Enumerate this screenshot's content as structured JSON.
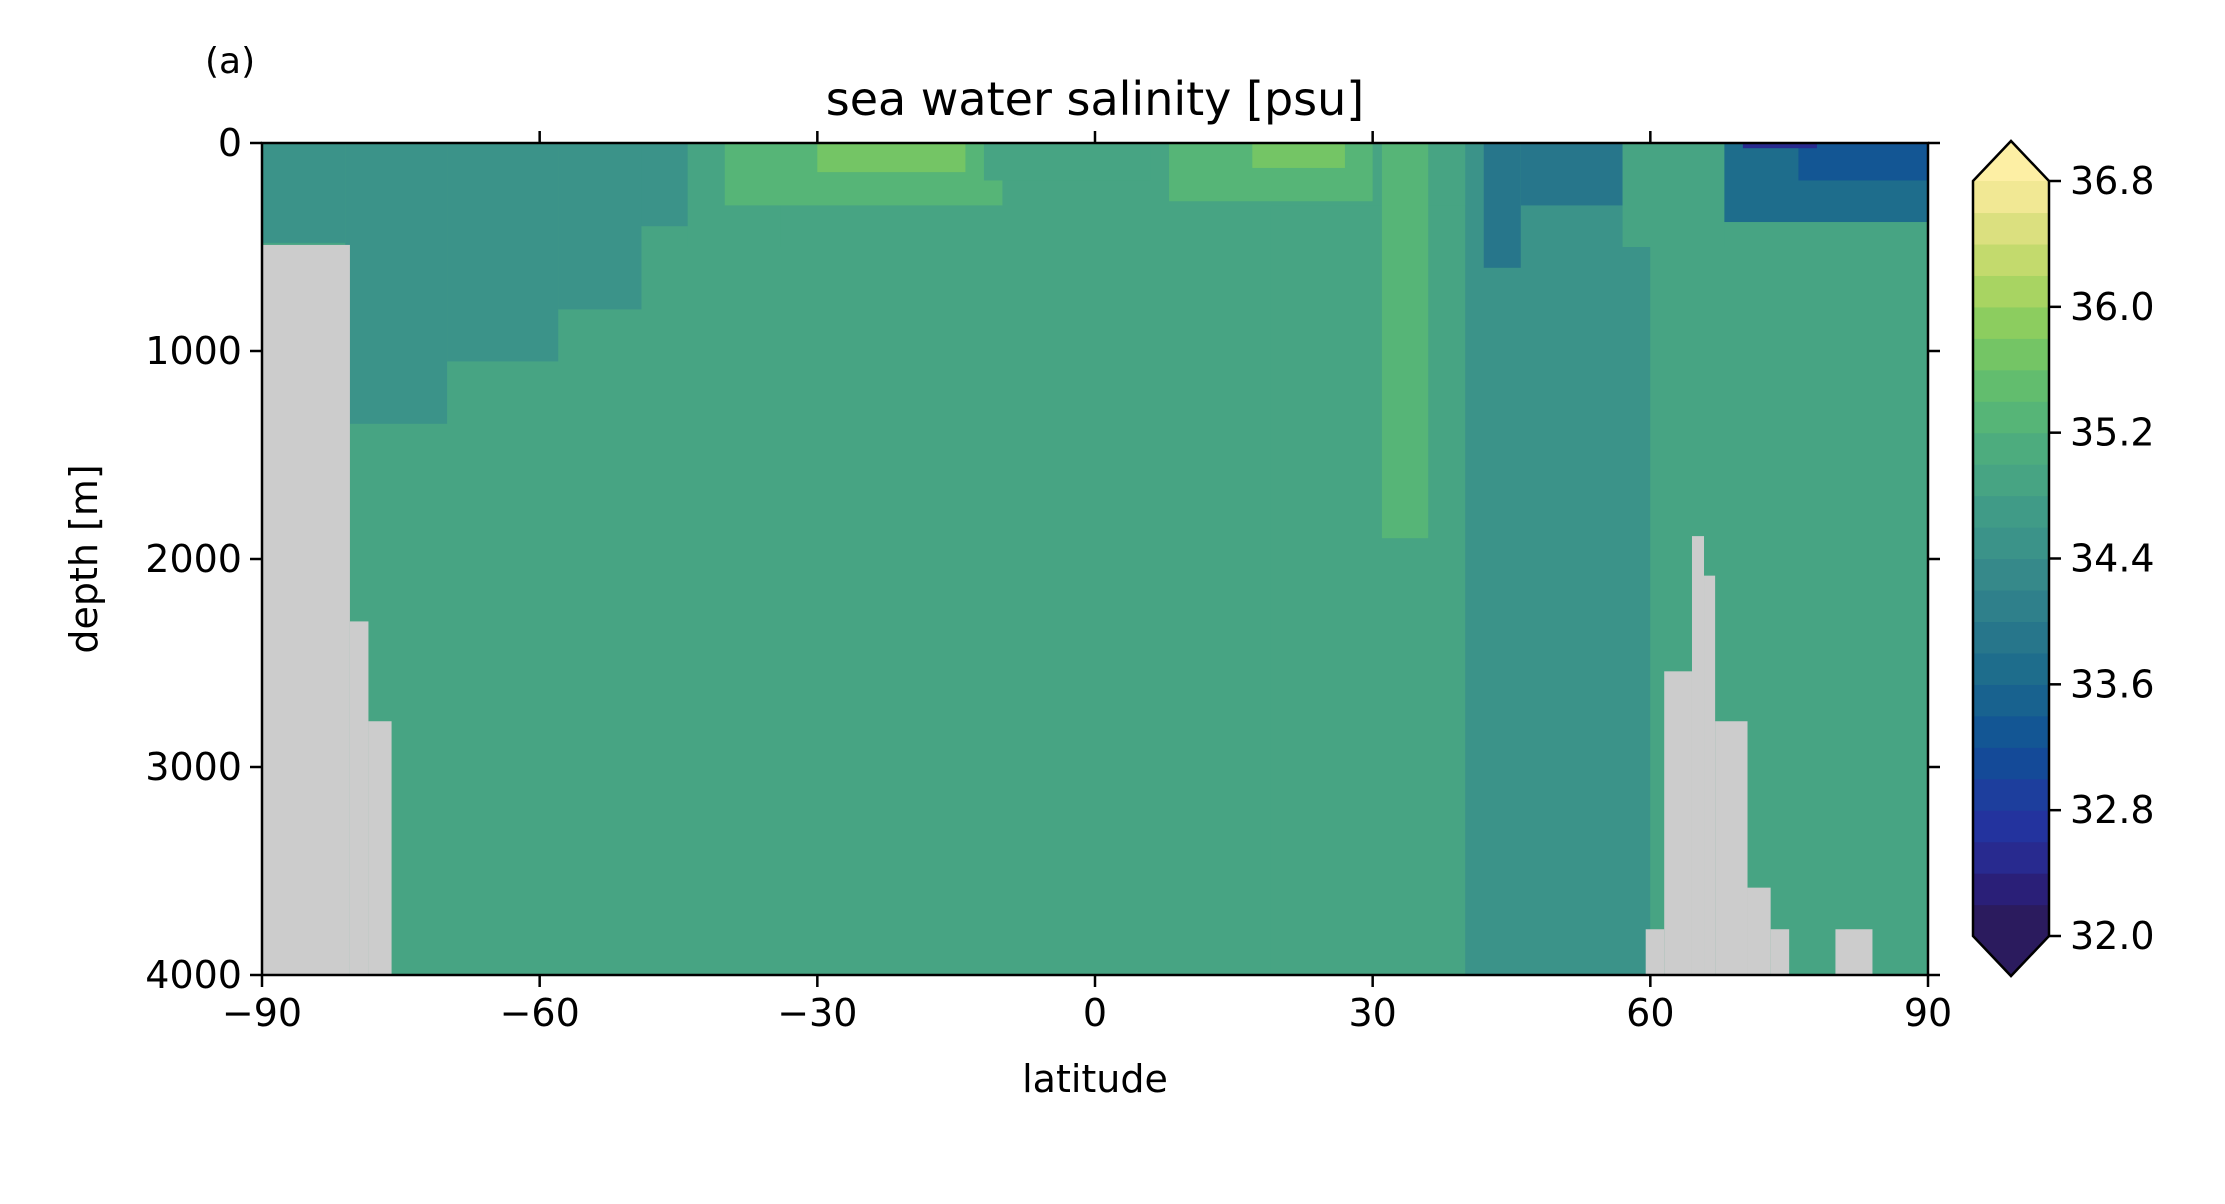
{
  "panel_label": "(a)",
  "chart_data": {
    "type": "heatmap",
    "title": "sea water salinity [psu]",
    "xlabel": "latitude",
    "ylabel": "depth [m]",
    "xlim": [
      -90,
      90
    ],
    "ylim": [
      4000,
      0
    ],
    "y_inverted": true,
    "x_ticks": [
      {
        "value": -90,
        "label": "−90"
      },
      {
        "value": -60,
        "label": "−60"
      },
      {
        "value": -30,
        "label": "−30"
      },
      {
        "value": 0,
        "label": "0"
      },
      {
        "value": 30,
        "label": "30"
      },
      {
        "value": 60,
        "label": "60"
      },
      {
        "value": 90,
        "label": "90"
      }
    ],
    "y_ticks": [
      {
        "value": 0,
        "label": "0"
      },
      {
        "value": 1000,
        "label": "1000"
      },
      {
        "value": 2000,
        "label": "2000"
      },
      {
        "value": 3000,
        "label": "3000"
      },
      {
        "value": 4000,
        "label": "4000"
      }
    ],
    "colorbar": {
      "vmin": 32.0,
      "vmax": 36.8,
      "extend": "both",
      "tick_labels": [
        {
          "value": 32.0,
          "label": "32.0"
        },
        {
          "value": 32.8,
          "label": "32.8"
        },
        {
          "value": 33.6,
          "label": "33.6"
        },
        {
          "value": 34.4,
          "label": "34.4"
        },
        {
          "value": 35.2,
          "label": "35.2"
        },
        {
          "value": 36.0,
          "label": "36.0"
        },
        {
          "value": 36.8,
          "label": "36.8"
        }
      ],
      "levels": [
        {
          "value": 32.0,
          "color": "#2b1b5e"
        },
        {
          "value": 32.2,
          "color": "#2a1f78"
        },
        {
          "value": 32.4,
          "color": "#282a8f"
        },
        {
          "value": 32.6,
          "color": "#23339e"
        },
        {
          "value": 32.8,
          "color": "#1d3e9d"
        },
        {
          "value": 33.0,
          "color": "#144a98"
        },
        {
          "value": 33.2,
          "color": "#135694"
        },
        {
          "value": 33.4,
          "color": "#18628f"
        },
        {
          "value": 33.6,
          "color": "#1e6d8c"
        },
        {
          "value": 33.8,
          "color": "#27768b"
        },
        {
          "value": 34.0,
          "color": "#2f808b"
        },
        {
          "value": 34.2,
          "color": "#36898a"
        },
        {
          "value": 34.4,
          "color": "#3b9389"
        },
        {
          "value": 34.6,
          "color": "#409b87"
        },
        {
          "value": 34.8,
          "color": "#47a483"
        },
        {
          "value": 35.0,
          "color": "#4dac7e"
        },
        {
          "value": 35.2,
          "color": "#56b577"
        },
        {
          "value": 35.4,
          "color": "#62bd6e"
        },
        {
          "value": 35.6,
          "color": "#74c565"
        },
        {
          "value": 35.8,
          "color": "#8ccd5f"
        },
        {
          "value": 36.0,
          "color": "#a8d462"
        },
        {
          "value": 36.2,
          "color": "#c3da6d"
        },
        {
          "value": 36.4,
          "color": "#dbe07f"
        },
        {
          "value": 36.6,
          "color": "#f1e894"
        },
        {
          "value": 36.8,
          "color": "#fdefa4"
        }
      ]
    },
    "land_color": "#cccccc",
    "background_field": 34.7,
    "field_regions": [
      {
        "lat": [
          -90,
          -81
        ],
        "depth": [
          0,
          480
        ],
        "value": 34.4
      },
      {
        "lat": [
          -81,
          -70
        ],
        "depth": [
          0,
          1350
        ],
        "value": 34.4
      },
      {
        "lat": [
          -70,
          -58
        ],
        "depth": [
          0,
          1050
        ],
        "value": 34.4
      },
      {
        "lat": [
          -58,
          -49
        ],
        "depth": [
          0,
          800
        ],
        "value": 34.4
      },
      {
        "lat": [
          -49,
          -44
        ],
        "depth": [
          0,
          400
        ],
        "value": 34.4
      },
      {
        "lat": [
          -44,
          -34
        ],
        "depth": [
          0,
          500
        ],
        "value": 34.9
      },
      {
        "lat": [
          -40,
          -10
        ],
        "depth": [
          0,
          300
        ],
        "value": 35.2
      },
      {
        "lat": [
          -30,
          -14
        ],
        "depth": [
          0,
          140
        ],
        "value": 35.6
      },
      {
        "lat": [
          -12,
          6
        ],
        "depth": [
          0,
          180
        ],
        "value": 34.9
      },
      {
        "lat": [
          8,
          30
        ],
        "depth": [
          0,
          280
        ],
        "value": 35.2
      },
      {
        "lat": [
          17,
          27
        ],
        "depth": [
          0,
          120
        ],
        "value": 35.6
      },
      {
        "lat": [
          19,
          40
        ],
        "depth": [
          300,
          4000
        ],
        "value": 34.9
      },
      {
        "lat": [
          31,
          36
        ],
        "depth": [
          0,
          1900
        ],
        "value": 35.2
      },
      {
        "lat": [
          40,
          60
        ],
        "depth": [
          0,
          4000
        ],
        "value": 34.4
      },
      {
        "lat": [
          42,
          46
        ],
        "depth": [
          0,
          600
        ],
        "value": 33.8
      },
      {
        "lat": [
          46,
          57
        ],
        "depth": [
          0,
          300
        ],
        "value": 33.8
      },
      {
        "lat": [
          57,
          68
        ],
        "depth": [
          0,
          500
        ],
        "value": 34.9
      },
      {
        "lat": [
          60,
          90
        ],
        "depth": [
          500,
          4000
        ],
        "value": 34.9
      },
      {
        "lat": [
          68,
          90
        ],
        "depth": [
          0,
          380
        ],
        "value": 33.6
      },
      {
        "lat": [
          76,
          90
        ],
        "depth": [
          0,
          180
        ],
        "value": 33.2
      },
      {
        "lat": [
          70,
          78
        ],
        "depth": [
          0,
          25
        ],
        "value": 32.4
      }
    ],
    "land_regions": [
      {
        "lat": [
          -90,
          -80.5
        ],
        "depth": [
          490,
          4000
        ]
      },
      {
        "lat": [
          -80.5,
          -78.5
        ],
        "depth": [
          2300,
          4000
        ]
      },
      {
        "lat": [
          -78.5,
          -76
        ],
        "depth": [
          2780,
          4000
        ]
      },
      {
        "lat": [
          59.5,
          61.5
        ],
        "depth": [
          3780,
          4000
        ]
      },
      {
        "lat": [
          61.5,
          64.5
        ],
        "depth": [
          2540,
          4000
        ]
      },
      {
        "lat": [
          64.5,
          65.8
        ],
        "depth": [
          1890,
          4000
        ]
      },
      {
        "lat": [
          65.8,
          67
        ],
        "depth": [
          2080,
          4000
        ]
      },
      {
        "lat": [
          67,
          70.5
        ],
        "depth": [
          2780,
          4000
        ]
      },
      {
        "lat": [
          70.5,
          73
        ],
        "depth": [
          3580,
          4000
        ]
      },
      {
        "lat": [
          73,
          75
        ],
        "depth": [
          3780,
          4000
        ]
      },
      {
        "lat": [
          80,
          84
        ],
        "depth": [
          3780,
          4000
        ]
      }
    ]
  }
}
